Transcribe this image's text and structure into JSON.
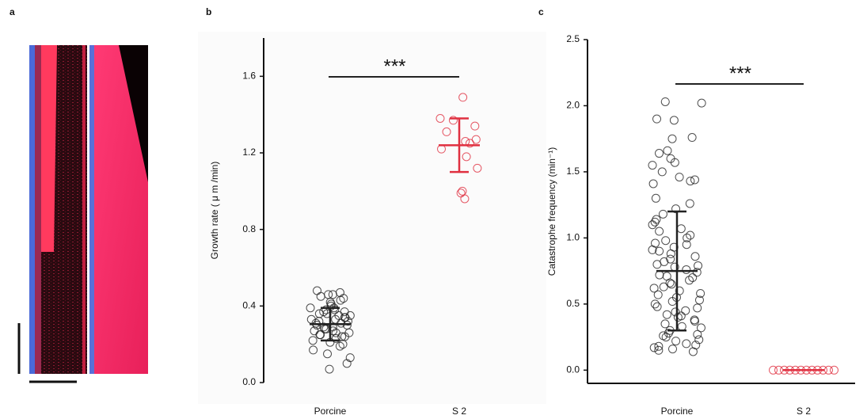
{
  "panel_labels": [
    "a",
    "b",
    "c"
  ],
  "chart_data": [
    {
      "type": "dot",
      "y_label": "Growth  rate ( μ m /min)",
      "annotation": "***",
      "categories": [
        "Porcine",
        "S 2"
      ],
      "ylim": [
        0,
        1.8
      ],
      "yticks": [
        {
          "value": 0,
          "label": "0.0"
        },
        0.4,
        0.8,
        1.2,
        1.6
      ],
      "groups": [
        {
          "name": "Porcine",
          "color": "#222222",
          "mean": 0.305,
          "sd": 0.085,
          "values": [
            0.48,
            0.47,
            0.46,
            0.46,
            0.45,
            0.44,
            0.43,
            0.42,
            0.41,
            0.4,
            0.39,
            0.39,
            0.38,
            0.38,
            0.37,
            0.37,
            0.36,
            0.36,
            0.35,
            0.35,
            0.34,
            0.34,
            0.33,
            0.33,
            0.32,
            0.32,
            0.31,
            0.31,
            0.3,
            0.3,
            0.29,
            0.29,
            0.28,
            0.28,
            0.27,
            0.27,
            0.26,
            0.26,
            0.25,
            0.25,
            0.24,
            0.24,
            0.23,
            0.22,
            0.21,
            0.2,
            0.19,
            0.17,
            0.15,
            0.13,
            0.1,
            0.07
          ]
        },
        {
          "name": "S 2",
          "color": "#e03040",
          "mean": 1.24,
          "sd": 0.14,
          "values": [
            1.49,
            1.38,
            1.37,
            1.34,
            1.31,
            1.27,
            1.26,
            1.25,
            1.22,
            1.18,
            1.12,
            1.0,
            0.99,
            0.96
          ]
        }
      ]
    },
    {
      "type": "dot",
      "y_label": "Catastrophe frequency   (min⁻¹)",
      "annotation": "***",
      "categories": [
        "Porcine",
        "S 2"
      ],
      "ylim": [
        -0.1,
        2.5
      ],
      "yticks": [
        {
          "value": 0,
          "label": "0.0"
        },
        0.5,
        {
          "value": 1,
          "label": "1.0"
        },
        1.5,
        {
          "value": 2,
          "label": "2.0"
        },
        2.5
      ],
      "x_axis": true,
      "groups": [
        {
          "name": "Porcine",
          "color": "#222222",
          "mean": 0.75,
          "sd": 0.45,
          "values": [
            2.03,
            2.02,
            1.9,
            1.89,
            1.76,
            1.75,
            1.66,
            1.64,
            1.6,
            1.57,
            1.55,
            1.5,
            1.46,
            1.44,
            1.43,
            1.41,
            1.3,
            1.26,
            1.22,
            1.18,
            1.14,
            1.12,
            1.1,
            1.07,
            1.05,
            1.02,
            1.0,
            0.98,
            0.96,
            0.95,
            0.93,
            0.91,
            0.9,
            0.88,
            0.86,
            0.84,
            0.82,
            0.8,
            0.79,
            0.78,
            0.76,
            0.74,
            0.72,
            0.71,
            0.7,
            0.68,
            0.66,
            0.65,
            0.63,
            0.62,
            0.6,
            0.58,
            0.57,
            0.55,
            0.53,
            0.52,
            0.5,
            0.48,
            0.47,
            0.45,
            0.44,
            0.42,
            0.41,
            0.4,
            0.38,
            0.37,
            0.35,
            0.33,
            0.32,
            0.3,
            0.28,
            0.27,
            0.26,
            0.25,
            0.23,
            0.22,
            0.2,
            0.19,
            0.18,
            0.17,
            0.16,
            0.15,
            0.14
          ]
        },
        {
          "name": "S 2",
          "color": "#e03040",
          "mean": 0,
          "sd": 0,
          "values": [
            0,
            0,
            0,
            0,
            0,
            0,
            0,
            0,
            0,
            0,
            0,
            0
          ]
        }
      ]
    }
  ]
}
